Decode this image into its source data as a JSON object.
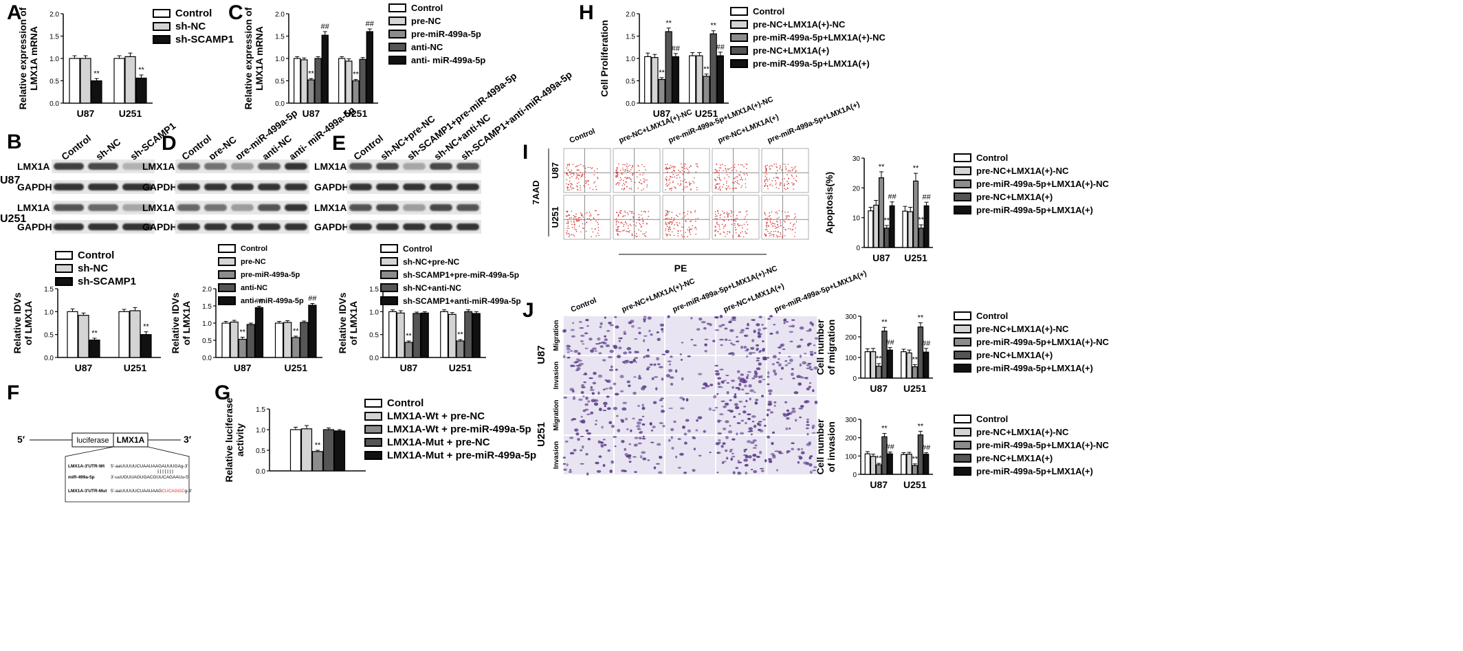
{
  "panels": {
    "A": "A",
    "B": "B",
    "C": "C",
    "D": "D",
    "E": "E",
    "F": "F",
    "G": "G",
    "H": "H",
    "I": "I",
    "J": "J"
  },
  "colors": {
    "white": "#ffffff",
    "lightgray": "#d4d4d4",
    "gray": "#8c8c8c",
    "darkgray": "#555555",
    "black": "#111111",
    "flow_red": "#d63a3a",
    "stain": "#5a3d8a",
    "text_red": "#e32222"
  },
  "legends": {
    "A": [
      "Control",
      "sh-NC",
      "sh-SCAMP1"
    ],
    "B": [
      "Control",
      "sh-NC",
      "sh-SCAMP1"
    ],
    "C": [
      "Control",
      "pre-NC",
      "pre-miR-499a-5p",
      "anti-NC",
      "anti- miR-499a-5p"
    ],
    "D": [
      "Control",
      "pre-NC",
      "pre-miR-499a-5p",
      "anti-NC",
      "anti- miR-499a-5p"
    ],
    "E": [
      "Control",
      "sh-NC+pre-NC",
      "sh-SCAMP1+pre-miR-499a-5p",
      "sh-NC+anti-NC",
      "sh-SCAMP1+anti-miR-499a-5p"
    ],
    "G": [
      "Control",
      "LMX1A-Wt + pre-NC",
      "LMX1A-Wt + pre-miR-499a-5p",
      "LMX1A-Mut + pre-NC",
      "LMX1A-Mut + pre-miR-499a-5p"
    ],
    "H": [
      "Control",
      "pre-NC+LMX1A(+)-NC",
      "pre-miR-499a-5p+LMX1A(+)-NC",
      "pre-NC+LMX1A(+)",
      "pre-miR-499a-5p+LMX1A(+)"
    ],
    "I": [
      "Control",
      "pre-NC+LMX1A(+)-NC",
      "pre-miR-499a-5p+LMX1A(+)-NC",
      "pre-NC+LMX1A(+)",
      "pre-miR-499a-5p+LMX1A(+)"
    ],
    "J1": [
      "Control",
      "pre-NC+LMX1A(+)-NC",
      "pre-miR-499a-5p+LMX1A(+)-NC",
      "pre-NC+LMX1A(+)",
      "pre-miR-499a-5p+LMX1A(+)"
    ],
    "J2": [
      "Control",
      "pre-NC+LMX1A(+)-NC",
      "pre-miR-499a-5p+LMX1A(+)-NC",
      "pre-NC+LMX1A(+)",
      "pre-miR-499a-5p+LMX1A(+)"
    ]
  },
  "blots": {
    "B": {
      "lanes": [
        "Control",
        "sh-NC",
        "sh-SCAMP1"
      ],
      "rows": [
        "LMX1A",
        "GAPDH",
        "LMX1A",
        "GAPDH"
      ],
      "side": [
        "U87",
        "U251"
      ]
    },
    "D": {
      "lanes": [
        "Control",
        "pre-NC",
        "pre-miR-499a-5p",
        "anti-NC",
        "anti- miR-499a-5p"
      ],
      "rows": [
        "LMX1A",
        "GAPDH",
        "LMX1A",
        "GAPDH"
      ]
    },
    "E": {
      "lanes": [
        "Control",
        "sh-NC+pre-NC",
        "sh-SCAMP1+pre-miR-499a-5p",
        "sh-NC+anti-NC",
        "sh-SCAMP1+anti-miR-499a-5p"
      ],
      "rows": [
        "LMX1A",
        "GAPDH",
        "LMX1A",
        "GAPDH"
      ]
    }
  },
  "flow": {
    "columns": [
      "Control",
      "pre-NC+LMX1A(+)-NC",
      "pre-miR-499a-5p+LMX1A(+)-NC",
      "pre-NC+LMX1A(+)",
      "pre-miR-499a-5p+LMX1A(+)"
    ],
    "rows": [
      "U87",
      "U251"
    ],
    "ylabel": "7AAD",
    "xlabel": "PE"
  },
  "micro": {
    "columns": [
      "Control",
      "pre-NC+LMX1A(+)-NC",
      "pre-miR-499a-5p+LMX1A(+)-NC",
      "pre-NC+LMX1A(+)",
      "pre-miR-499a-5p+LMX1A(+)"
    ],
    "groups": [
      "U87",
      "U251"
    ],
    "rows": [
      "Migration",
      "Invasion",
      "Migration",
      "Invasion"
    ]
  },
  "construct": {
    "five": "5′",
    "three": "3′",
    "box1": "luciferase",
    "box2": "LMX1A",
    "rows": [
      {
        "name": "LMX1A-3'UTR-Wt",
        "seq": "5'-aaUUUUUCUAAUAAGAUUUGAg-3'"
      },
      {
        "name": "miR-499a-5p",
        "seq": "3'-uuUGUUAGUGACGUUCAGAAUu-5'"
      },
      {
        "name": "LMX1A-3'UTR-Mut",
        "seq_pre": "5'-aaUUUUUCUAAUAAG",
        "seq_red": "CUCAGGC",
        "seq_post": "g-3'"
      }
    ]
  },
  "chart_data": [
    {
      "id": "A",
      "type": "bar",
      "categories": [
        "U87",
        "U251"
      ],
      "series": [
        {
          "name": "Control",
          "values": [
            1.0,
            1.0
          ]
        },
        {
          "name": "sh-NC",
          "values": [
            1.0,
            1.04
          ]
        },
        {
          "name": "sh-SCAMP1",
          "values": [
            0.5,
            0.56
          ]
        }
      ],
      "errors": [
        [
          0.06,
          0.06
        ],
        [
          0.06,
          0.08
        ],
        [
          0.05,
          0.07
        ]
      ],
      "annotations": [
        "**",
        "**"
      ],
      "ylabel": "Relative expression of LMX1A mRNA",
      "ylim": [
        0,
        2.0
      ],
      "yticks": [
        "0.0",
        "0.5",
        "1.0",
        "1.5",
        "2.0"
      ]
    },
    {
      "id": "B",
      "type": "bar",
      "categories": [
        "U87",
        "U251"
      ],
      "series": [
        {
          "name": "Control",
          "values": [
            1.0,
            1.0
          ]
        },
        {
          "name": "sh-NC",
          "values": [
            0.92,
            1.02
          ]
        },
        {
          "name": "sh-SCAMP1",
          "values": [
            0.38,
            0.5
          ]
        }
      ],
      "errors": [
        [
          0.06,
          0.05
        ],
        [
          0.05,
          0.07
        ],
        [
          0.04,
          0.06
        ]
      ],
      "annotations": [
        "**",
        "**"
      ],
      "ylabel": "Relative IDVs of LMX1A",
      "ylim": [
        0,
        1.5
      ],
      "yticks": [
        "0.0",
        "0.5",
        "1.0",
        "1.5"
      ]
    },
    {
      "id": "C",
      "type": "bar",
      "categories": [
        "U87",
        "U251"
      ],
      "series": [
        {
          "name": "Control",
          "values": [
            1.0,
            1.0
          ]
        },
        {
          "name": "pre-NC",
          "values": [
            0.97,
            0.94
          ]
        },
        {
          "name": "pre-miR-499a-5p",
          "values": [
            0.52,
            0.5
          ]
        },
        {
          "name": "anti-NC",
          "values": [
            1.0,
            0.98
          ]
        },
        {
          "name": "anti- miR-499a-5p",
          "values": [
            1.52,
            1.6
          ]
        }
      ],
      "errors": [
        [
          0.04,
          0.04
        ],
        [
          0.04,
          0.05
        ],
        [
          0.03,
          0.03
        ],
        [
          0.04,
          0.04
        ],
        [
          0.08,
          0.06
        ]
      ],
      "annotations": [
        "**",
        "##",
        "**",
        "##"
      ],
      "ylabel": "Relative expression of LMX1A mRNA",
      "ylim": [
        0,
        2.0
      ],
      "yticks": [
        "0.0",
        "0.5",
        "1.0",
        "1.5",
        "2.0"
      ]
    },
    {
      "id": "D",
      "type": "bar",
      "categories": [
        "U87",
        "U251"
      ],
      "series": [
        {
          "name": "Control",
          "values": [
            1.0,
            1.0
          ]
        },
        {
          "name": "pre-NC",
          "values": [
            1.03,
            1.02
          ]
        },
        {
          "name": "pre-miR-499a-5p",
          "values": [
            0.53,
            0.58
          ]
        },
        {
          "name": "anti-NC",
          "values": [
            0.96,
            1.02
          ]
        },
        {
          "name": "anti- miR-499a-5p",
          "values": [
            1.45,
            1.52
          ]
        }
      ],
      "errors": [
        [
          0.05,
          0.05
        ],
        [
          0.05,
          0.05
        ],
        [
          0.06,
          0.04
        ],
        [
          0.04,
          0.04
        ],
        [
          0.04,
          0.05
        ]
      ],
      "annotations": [
        "**",
        "##",
        "**",
        "##"
      ],
      "ylabel": "Relative IDVs of LMX1A",
      "ylim": [
        0,
        2.0
      ],
      "yticks": [
        "0.0",
        "0.5",
        "1.0",
        "1.5",
        "2.0"
      ]
    },
    {
      "id": "E",
      "type": "bar",
      "categories": [
        "U87",
        "U251"
      ],
      "series": [
        {
          "name": "Control",
          "values": [
            1.0,
            1.0
          ]
        },
        {
          "name": "sh-NC+pre-NC",
          "values": [
            0.97,
            0.94
          ]
        },
        {
          "name": "sh-SCAMP1+pre-miR-499a-5p",
          "values": [
            0.33,
            0.36
          ]
        },
        {
          "name": "sh-NC+anti-NC",
          "values": [
            0.96,
            1.0
          ]
        },
        {
          "name": "sh-SCAMP1+anti-miR-499a-5p",
          "values": [
            0.97,
            0.96
          ]
        }
      ],
      "errors": [
        [
          0.04,
          0.04
        ],
        [
          0.05,
          0.04
        ],
        [
          0.03,
          0.03
        ],
        [
          0.03,
          0.04
        ],
        [
          0.03,
          0.04
        ]
      ],
      "annotations": [
        "**",
        "**"
      ],
      "ylabel": "Relative IDVs of LMX1A",
      "ylim": [
        0,
        1.5
      ],
      "yticks": [
        "0.0",
        "0.5",
        "1.0",
        "1.5"
      ]
    },
    {
      "id": "G",
      "type": "bar",
      "categories": [
        ""
      ],
      "series": [
        {
          "name": "Control",
          "values": [
            1.0
          ]
        },
        {
          "name": "LMX1A-Wt + pre-NC",
          "values": [
            1.02
          ]
        },
        {
          "name": "LMX1A-Wt + pre-miR-499a-5p",
          "values": [
            0.47
          ]
        },
        {
          "name": "LMX1A-Mut + pre-NC",
          "values": [
            1.0
          ]
        },
        {
          "name": "LMX1A-Mut + pre-miR-499a-5p",
          "values": [
            0.97
          ]
        }
      ],
      "errors": [
        [
          0.06
        ],
        [
          0.08
        ],
        [
          0.03
        ],
        [
          0.04
        ],
        [
          0.03
        ]
      ],
      "annotations": [
        "**"
      ],
      "ylabel": "Relative luciferase activity",
      "ylim": [
        0,
        1.5
      ],
      "yticks": [
        "0.0",
        "0.5",
        "1.0",
        "1.5"
      ]
    },
    {
      "id": "H",
      "type": "bar",
      "categories": [
        "U87",
        "U251"
      ],
      "series": [
        {
          "name": "Control",
          "values": [
            1.04,
            1.06
          ]
        },
        {
          "name": "pre-NC+LMX1A(+)-NC",
          "values": [
            1.02,
            1.06
          ]
        },
        {
          "name": "pre-miR-499a-5p+LMX1A(+)-NC",
          "values": [
            0.53,
            0.6
          ]
        },
        {
          "name": "pre-NC+LMX1A(+)",
          "values": [
            1.6,
            1.55
          ]
        },
        {
          "name": "pre-miR-499a-5p+LMX1A(+)",
          "values": [
            1.04,
            1.06
          ]
        }
      ],
      "errors": [
        [
          0.08,
          0.07
        ],
        [
          0.07,
          0.07
        ],
        [
          0.04,
          0.05
        ],
        [
          0.08,
          0.07
        ],
        [
          0.07,
          0.08
        ]
      ],
      "annotations": [
        "**",
        "**",
        "##",
        "**",
        "**",
        "##"
      ],
      "ylabel": "Cell Proliferation",
      "ylim": [
        0,
        2.0
      ],
      "yticks": [
        "0.0",
        "0.5",
        "1.0",
        "1.5",
        "2.0"
      ]
    },
    {
      "id": "I",
      "type": "bar",
      "categories": [
        "U87",
        "U251"
      ],
      "series": [
        {
          "name": "Control",
          "values": [
            12.3,
            12.2
          ]
        },
        {
          "name": "pre-NC+LMX1A(+)-NC",
          "values": [
            14.2,
            12.0
          ]
        },
        {
          "name": "pre-miR-499a-5p+LMX1A(+)-NC",
          "values": [
            23.4,
            22.3
          ]
        },
        {
          "name": "pre-NC+LMX1A(+)",
          "values": [
            6.5,
            6.5
          ]
        },
        {
          "name": "pre-miR-499a-5p+LMX1A(+)",
          "values": [
            14.0,
            14.0
          ]
        }
      ],
      "errors": [
        [
          1.2,
          1.6
        ],
        [
          1.6,
          1.5
        ],
        [
          2.0,
          2.6
        ],
        [
          0.9,
          1.1
        ],
        [
          1.3,
          1.2
        ]
      ],
      "annotations": [
        "**",
        "**",
        "##",
        "**",
        "**",
        "##"
      ],
      "ylabel": "Apoptosis(%)",
      "ylim": [
        0,
        30
      ],
      "yticks": [
        "0",
        "10",
        "20",
        "30"
      ]
    },
    {
      "id": "J1",
      "type": "bar",
      "categories": [
        "U87",
        "U251"
      ],
      "series": [
        {
          "name": "Control",
          "values": [
            128,
            128
          ]
        },
        {
          "name": "pre-NC+LMX1A(+)-NC",
          "values": [
            128,
            122
          ]
        },
        {
          "name": "pre-miR-499a-5p+LMX1A(+)-NC",
          "values": [
            58,
            55
          ]
        },
        {
          "name": "pre-NC+LMX1A(+)",
          "values": [
            228,
            248
          ]
        },
        {
          "name": "pre-miR-499a-5p+LMX1A(+)",
          "values": [
            136,
            126
          ]
        }
      ],
      "errors": [
        [
          14,
          12
        ],
        [
          16,
          14
        ],
        [
          12,
          10
        ],
        [
          18,
          20
        ],
        [
          12,
          18
        ]
      ],
      "annotations": [
        "**",
        "**",
        "##",
        "**",
        "**",
        "##"
      ],
      "ylabel": "Cell number of migration",
      "ylim": [
        0,
        300
      ],
      "yticks": [
        "0",
        "100",
        "200",
        "300"
      ]
    },
    {
      "id": "J2",
      "type": "bar",
      "categories": [
        "U87",
        "U251"
      ],
      "series": [
        {
          "name": "Control",
          "values": [
            112,
            108
          ]
        },
        {
          "name": "pre-NC+LMX1A(+)-NC",
          "values": [
            98,
            110
          ]
        },
        {
          "name": "pre-miR-499a-5p+LMX1A(+)-NC",
          "values": [
            52,
            48
          ]
        },
        {
          "name": "pre-NC+LMX1A(+)",
          "values": [
            205,
            215
          ]
        },
        {
          "name": "pre-miR-499a-5p+LMX1A(+)",
          "values": [
            112,
            110
          ]
        }
      ],
      "errors": [
        [
          12,
          10
        ],
        [
          12,
          10
        ],
        [
          8,
          9
        ],
        [
          18,
          20
        ],
        [
          10,
          8
        ]
      ],
      "annotations": [
        "**",
        "**",
        "##",
        "**",
        "**",
        "##"
      ],
      "ylabel": "Cell number of invasion",
      "ylim": [
        0,
        300
      ],
      "yticks": [
        "0",
        "100",
        "200",
        "300"
      ]
    }
  ]
}
